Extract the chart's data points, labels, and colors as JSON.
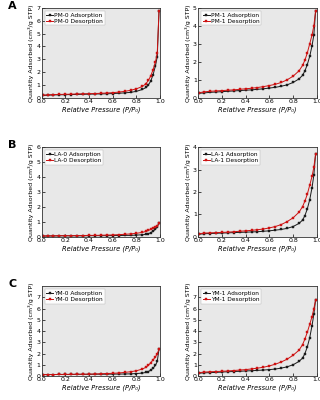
{
  "subplots": [
    {
      "label": "A",
      "row": 0,
      "col": 0,
      "sample_ads": "PM-0 Adsorption",
      "sample_des": "PM-0 Desorption",
      "ylim": [
        0,
        7
      ],
      "yticks": [
        0,
        1,
        2,
        3,
        4,
        5,
        6,
        7
      ],
      "ads_x": [
        0.01,
        0.05,
        0.1,
        0.15,
        0.2,
        0.25,
        0.3,
        0.35,
        0.4,
        0.45,
        0.5,
        0.55,
        0.6,
        0.65,
        0.7,
        0.75,
        0.8,
        0.85,
        0.88,
        0.9,
        0.92,
        0.94,
        0.96,
        0.975,
        0.99
      ],
      "ads_y": [
        0.18,
        0.2,
        0.22,
        0.23,
        0.24,
        0.25,
        0.26,
        0.27,
        0.28,
        0.29,
        0.3,
        0.31,
        0.33,
        0.35,
        0.38,
        0.42,
        0.5,
        0.65,
        0.8,
        1.0,
        1.3,
        1.8,
        2.5,
        3.2,
        6.8
      ],
      "des_x": [
        0.99,
        0.975,
        0.96,
        0.94,
        0.92,
        0.9,
        0.88,
        0.85,
        0.8,
        0.75,
        0.7,
        0.65,
        0.6,
        0.55,
        0.5,
        0.45,
        0.4,
        0.35,
        0.3,
        0.25,
        0.2,
        0.15,
        0.1,
        0.05,
        0.01
      ],
      "des_y": [
        6.8,
        3.5,
        2.8,
        2.2,
        1.7,
        1.35,
        1.1,
        0.88,
        0.7,
        0.58,
        0.5,
        0.44,
        0.4,
        0.37,
        0.35,
        0.33,
        0.32,
        0.31,
        0.3,
        0.28,
        0.27,
        0.26,
        0.25,
        0.23,
        0.2
      ]
    },
    {
      "label": "A",
      "row": 0,
      "col": 1,
      "sample_ads": "PM-1 Adsorption",
      "sample_des": "PM-1 Desorption",
      "ylim": [
        0,
        5
      ],
      "yticks": [
        0,
        1,
        2,
        3,
        4,
        5
      ],
      "ads_x": [
        0.01,
        0.05,
        0.1,
        0.15,
        0.2,
        0.25,
        0.3,
        0.35,
        0.4,
        0.45,
        0.5,
        0.55,
        0.6,
        0.65,
        0.7,
        0.75,
        0.8,
        0.85,
        0.88,
        0.9,
        0.92,
        0.94,
        0.96,
        0.975,
        0.99
      ],
      "ads_y": [
        0.25,
        0.27,
        0.3,
        0.32,
        0.34,
        0.36,
        0.38,
        0.4,
        0.42,
        0.44,
        0.47,
        0.5,
        0.54,
        0.58,
        0.64,
        0.72,
        0.85,
        1.05,
        1.25,
        1.5,
        1.85,
        2.3,
        2.9,
        3.5,
        4.85
      ],
      "des_x": [
        0.99,
        0.975,
        0.96,
        0.94,
        0.92,
        0.9,
        0.88,
        0.85,
        0.8,
        0.75,
        0.7,
        0.65,
        0.6,
        0.55,
        0.5,
        0.45,
        0.4,
        0.35,
        0.3,
        0.25,
        0.2,
        0.15,
        0.1,
        0.05,
        0.01
      ],
      "des_y": [
        4.85,
        4.0,
        3.5,
        3.0,
        2.5,
        2.1,
        1.8,
        1.5,
        1.2,
        1.0,
        0.85,
        0.75,
        0.68,
        0.62,
        0.57,
        0.53,
        0.5,
        0.47,
        0.44,
        0.42,
        0.4,
        0.38,
        0.36,
        0.33,
        0.28
      ]
    },
    {
      "label": "B",
      "row": 1,
      "col": 0,
      "sample_ads": "LA-0 Adsorption",
      "sample_des": "LA-0 Desorption",
      "ylim": [
        0,
        6
      ],
      "yticks": [
        0,
        1,
        2,
        3,
        4,
        5,
        6
      ],
      "ads_x": [
        0.01,
        0.05,
        0.1,
        0.15,
        0.2,
        0.25,
        0.3,
        0.35,
        0.4,
        0.45,
        0.5,
        0.55,
        0.6,
        0.65,
        0.7,
        0.75,
        0.8,
        0.85,
        0.88,
        0.9,
        0.92,
        0.94,
        0.96,
        0.975,
        0.99
      ],
      "ads_y": [
        0.05,
        0.06,
        0.06,
        0.07,
        0.07,
        0.07,
        0.07,
        0.07,
        0.08,
        0.08,
        0.08,
        0.08,
        0.09,
        0.09,
        0.1,
        0.1,
        0.12,
        0.14,
        0.17,
        0.21,
        0.28,
        0.38,
        0.52,
        0.68,
        0.9
      ],
      "des_x": [
        0.99,
        0.975,
        0.96,
        0.94,
        0.92,
        0.9,
        0.88,
        0.85,
        0.8,
        0.75,
        0.7,
        0.65,
        0.6,
        0.55,
        0.5,
        0.45,
        0.4,
        0.35,
        0.3,
        0.25,
        0.2,
        0.15,
        0.1,
        0.05,
        0.01
      ],
      "des_y": [
        0.9,
        0.75,
        0.65,
        0.58,
        0.5,
        0.43,
        0.37,
        0.3,
        0.24,
        0.2,
        0.17,
        0.15,
        0.13,
        0.12,
        0.11,
        0.1,
        0.1,
        0.09,
        0.09,
        0.08,
        0.08,
        0.08,
        0.07,
        0.07,
        0.06
      ]
    },
    {
      "label": "B",
      "row": 1,
      "col": 1,
      "sample_ads": "LA-1 Adsorption",
      "sample_des": "LA-1 Desorption",
      "ylim": [
        0,
        4
      ],
      "yticks": [
        0,
        1,
        2,
        3,
        4
      ],
      "ads_x": [
        0.01,
        0.05,
        0.1,
        0.15,
        0.2,
        0.25,
        0.3,
        0.35,
        0.4,
        0.45,
        0.5,
        0.55,
        0.6,
        0.65,
        0.7,
        0.75,
        0.8,
        0.85,
        0.88,
        0.9,
        0.92,
        0.94,
        0.96,
        0.975,
        0.99
      ],
      "ads_y": [
        0.12,
        0.14,
        0.15,
        0.16,
        0.17,
        0.18,
        0.19,
        0.2,
        0.21,
        0.22,
        0.23,
        0.25,
        0.27,
        0.3,
        0.33,
        0.38,
        0.46,
        0.6,
        0.75,
        0.95,
        1.25,
        1.65,
        2.2,
        2.75,
        3.7
      ],
      "des_x": [
        0.99,
        0.975,
        0.96,
        0.94,
        0.92,
        0.9,
        0.88,
        0.85,
        0.8,
        0.75,
        0.7,
        0.65,
        0.6,
        0.55,
        0.5,
        0.45,
        0.4,
        0.35,
        0.3,
        0.25,
        0.2,
        0.15,
        0.1,
        0.05,
        0.01
      ],
      "des_y": [
        3.7,
        3.1,
        2.7,
        2.3,
        1.9,
        1.6,
        1.35,
        1.1,
        0.85,
        0.68,
        0.55,
        0.46,
        0.4,
        0.35,
        0.32,
        0.29,
        0.27,
        0.25,
        0.23,
        0.21,
        0.2,
        0.19,
        0.18,
        0.17,
        0.14
      ]
    },
    {
      "label": "C",
      "row": 2,
      "col": 0,
      "sample_ads": "YM-0 Adsorption",
      "sample_des": "YM-0 Desorption",
      "ylim": [
        0,
        8
      ],
      "yticks": [
        0,
        1,
        2,
        3,
        4,
        5,
        6,
        7
      ],
      "ads_x": [
        0.01,
        0.05,
        0.1,
        0.15,
        0.2,
        0.25,
        0.3,
        0.35,
        0.4,
        0.45,
        0.5,
        0.55,
        0.6,
        0.65,
        0.7,
        0.75,
        0.8,
        0.85,
        0.88,
        0.9,
        0.92,
        0.94,
        0.96,
        0.975,
        0.99
      ],
      "ads_y": [
        0.12,
        0.13,
        0.13,
        0.14,
        0.14,
        0.14,
        0.15,
        0.15,
        0.15,
        0.16,
        0.16,
        0.16,
        0.17,
        0.17,
        0.18,
        0.19,
        0.22,
        0.26,
        0.32,
        0.4,
        0.52,
        0.7,
        0.95,
        1.3,
        2.4
      ],
      "des_x": [
        0.99,
        0.975,
        0.96,
        0.94,
        0.92,
        0.9,
        0.88,
        0.85,
        0.8,
        0.75,
        0.7,
        0.65,
        0.6,
        0.55,
        0.5,
        0.45,
        0.4,
        0.35,
        0.3,
        0.25,
        0.2,
        0.15,
        0.1,
        0.05,
        0.01
      ],
      "des_y": [
        2.4,
        2.0,
        1.7,
        1.45,
        1.18,
        0.95,
        0.78,
        0.62,
        0.47,
        0.38,
        0.32,
        0.27,
        0.24,
        0.22,
        0.2,
        0.18,
        0.17,
        0.16,
        0.16,
        0.15,
        0.14,
        0.14,
        0.13,
        0.13,
        0.12
      ]
    },
    {
      "label": "C",
      "row": 2,
      "col": 1,
      "sample_ads": "YM-1 Adsorption",
      "sample_des": "YM-1 Desorption",
      "ylim": [
        0,
        8
      ],
      "yticks": [
        0,
        1,
        2,
        3,
        4,
        5,
        6,
        7
      ],
      "ads_x": [
        0.01,
        0.05,
        0.1,
        0.15,
        0.2,
        0.25,
        0.3,
        0.35,
        0.4,
        0.45,
        0.5,
        0.55,
        0.6,
        0.65,
        0.7,
        0.75,
        0.8,
        0.85,
        0.88,
        0.9,
        0.92,
        0.94,
        0.96,
        0.975,
        0.99
      ],
      "ads_y": [
        0.25,
        0.28,
        0.3,
        0.32,
        0.35,
        0.38,
        0.4,
        0.42,
        0.45,
        0.47,
        0.5,
        0.53,
        0.57,
        0.62,
        0.7,
        0.82,
        1.0,
        1.3,
        1.6,
        2.0,
        2.6,
        3.4,
        4.5,
        5.5,
        6.8
      ],
      "des_x": [
        0.99,
        0.975,
        0.96,
        0.94,
        0.92,
        0.9,
        0.88,
        0.85,
        0.8,
        0.75,
        0.7,
        0.65,
        0.6,
        0.55,
        0.5,
        0.45,
        0.4,
        0.35,
        0.3,
        0.25,
        0.2,
        0.15,
        0.1,
        0.05,
        0.01
      ],
      "des_y": [
        6.8,
        6.0,
        5.3,
        4.6,
        3.9,
        3.3,
        2.8,
        2.3,
        1.85,
        1.5,
        1.25,
        1.05,
        0.9,
        0.78,
        0.7,
        0.63,
        0.57,
        0.53,
        0.49,
        0.45,
        0.42,
        0.4,
        0.38,
        0.35,
        0.3
      ]
    }
  ],
  "ads_color": "#1a1a1a",
  "des_color": "#cc1111",
  "marker_ads": "s",
  "marker_des": "s",
  "markersize": 1.8,
  "linewidth": 0.7,
  "xlabel": "Relative Pressure (P/P₀)",
  "ylabel": "Quantity Adsorbed (cm³/g STP)",
  "bg_color": "#e8e8e8",
  "legend_fontsize": 4.2,
  "tick_fontsize": 4.5,
  "label_fontsize": 4.8,
  "row_label_fontsize": 8,
  "xticks": [
    0.0,
    0.2,
    0.4,
    0.6,
    0.8,
    1.0
  ],
  "xtick_labels": [
    "0.0",
    "0.2",
    "0.4",
    "0.6",
    "0.8",
    "1.0"
  ]
}
